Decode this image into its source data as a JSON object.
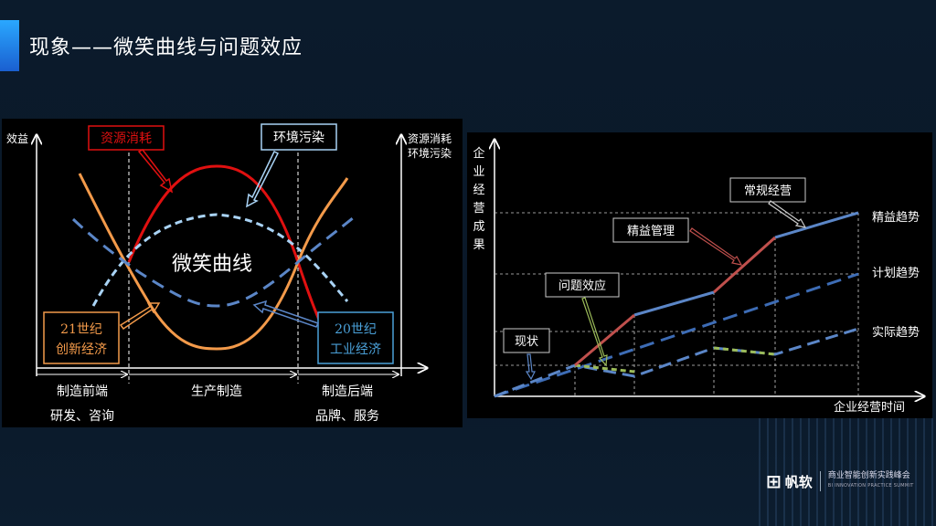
{
  "slide": {
    "title": "现象——微笑曲线与问题效应"
  },
  "smile_diagram": {
    "y_label_left": "效益",
    "y_label_right_1": "资源消耗",
    "y_label_right_2": "环境污染",
    "callout_resource": "资源消耗",
    "callout_env": "环境污染",
    "center_label": "微笑曲线",
    "box_21c_line1": "21世纪",
    "box_21c_line2": "创新经济",
    "box_20c_line1": "20世纪",
    "box_20c_line2": "工业经济",
    "stage_front": "制造前端",
    "stage_mid": "生产制造",
    "stage_back": "制造后端",
    "stage_front_sub": "研发、咨询",
    "stage_back_sub": "品牌、服务",
    "colors": {
      "resource": "#e01010",
      "environment": "#a9d3f5",
      "curve_21c": "#f39a4a",
      "curve_20c": "#5b86c7"
    }
  },
  "trend_diagram": {
    "y_label": [
      "企",
      "业",
      "经",
      "营",
      "成",
      "果"
    ],
    "x_label": "企业经营时间",
    "callout_current": "现状",
    "callout_problem": "问题效应",
    "callout_lean_mgmt": "精益管理",
    "callout_regular": "常规经营",
    "trend_lean": "精益趋势",
    "trend_plan": "计划趋势",
    "trend_actual": "实际趋势",
    "colors": {
      "lean": "#5b86c7",
      "lean_up": "#c0504d",
      "plan": "#3d6cb5",
      "actual": "#9bbb59"
    }
  },
  "footer": {
    "brand_mark": "🅵",
    "brand_name": "帆软",
    "event_cn": "商业智能创新实践峰会",
    "event_en": "BI INNOVATION PRACTICE SUMMIT"
  }
}
